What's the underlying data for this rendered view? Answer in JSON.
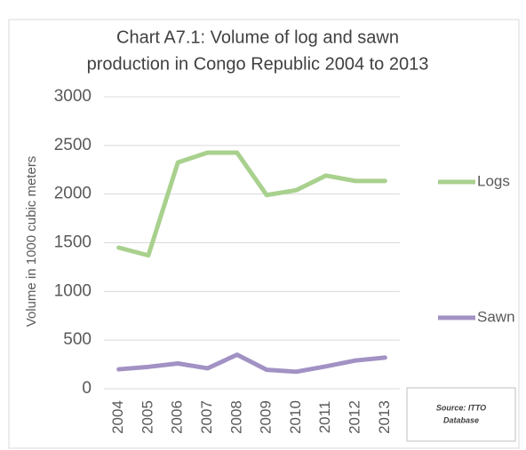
{
  "chart_data": {
    "type": "line",
    "title": [
      "Chart A7.1: Volume of log and sawn",
      "production in Congo Republic 2004 to 2013"
    ],
    "y_label": "Volume in 1000 cubic meters",
    "categories": [
      "2004",
      "2005",
      "2006",
      "2007",
      "2008",
      "2009",
      "2010",
      "2011",
      "2012",
      "2013"
    ],
    "series": [
      {
        "name": "Logs",
        "color": "#a9d18e",
        "values": [
          1450,
          1370,
          2325,
          2425,
          2425,
          1990,
          2040,
          2190,
          2135,
          2135
        ]
      },
      {
        "name": "Sawn",
        "color": "#a292c4",
        "values": [
          200,
          225,
          260,
          210,
          350,
          195,
          175,
          230,
          290,
          320
        ]
      }
    ],
    "ylim": [
      0,
      3000
    ],
    "yticks": [
      0,
      500,
      1000,
      1500,
      2000,
      2500,
      3000
    ],
    "grid": true,
    "source": [
      "Source: ITTO",
      "Database"
    ]
  }
}
